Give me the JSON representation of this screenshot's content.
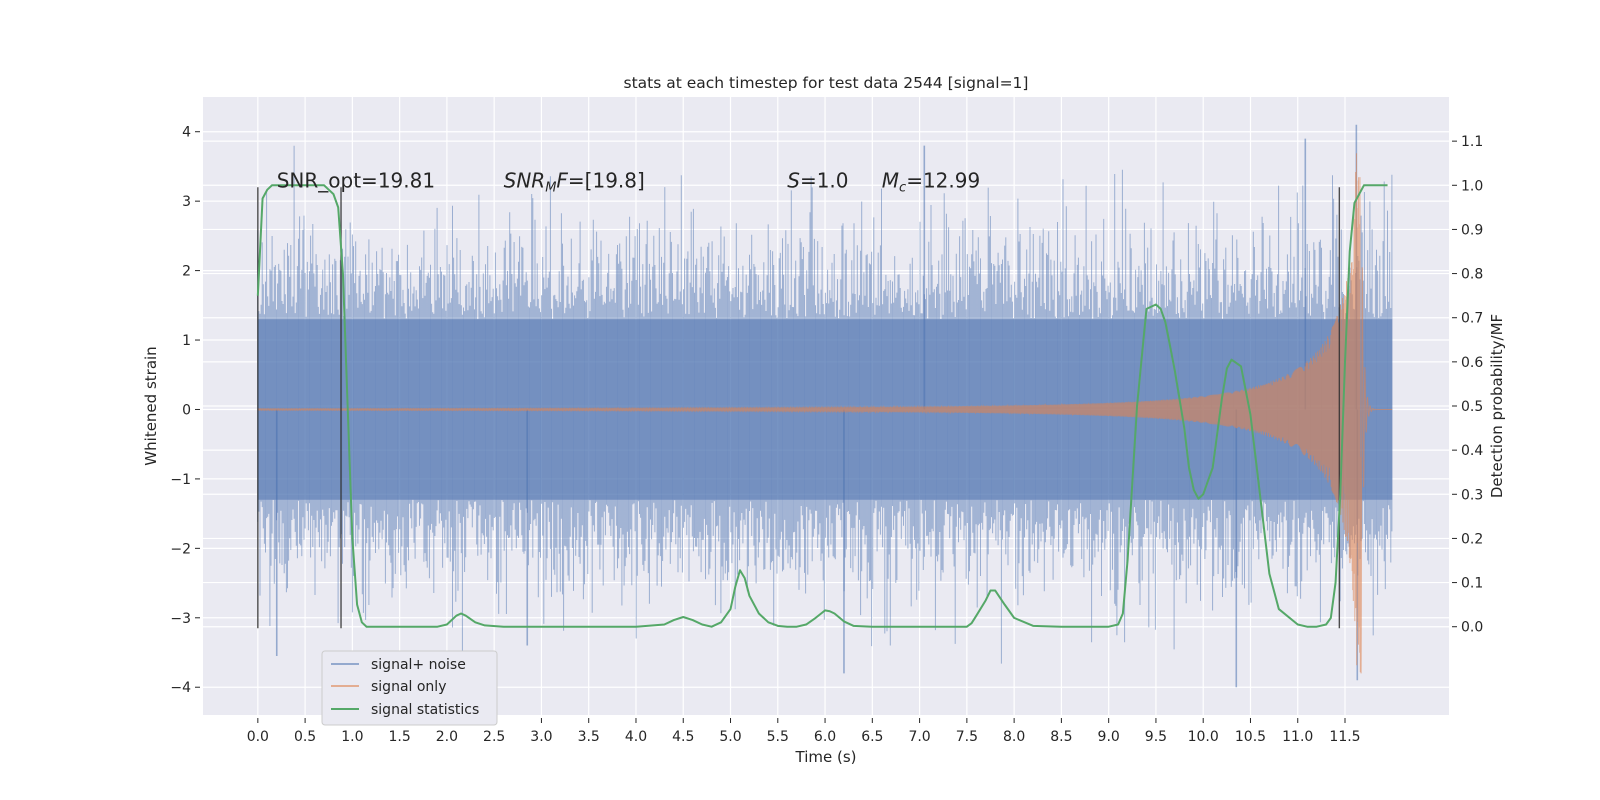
{
  "chart_data": {
    "type": "line",
    "title": "stats at each timestep for test data 2544 [signal=1]",
    "xlabel": "Time (s)",
    "ylabel": "Whitened strain",
    "y2label": "Detection probability/MF",
    "xlim": [
      -0.58,
      12.6
    ],
    "ylim": [
      -4.4,
      4.5
    ],
    "y2lim": [
      -0.2,
      1.2
    ],
    "xticks": [
      "0.0",
      "0.5",
      "1.0",
      "1.5",
      "2.0",
      "2.5",
      "3.0",
      "3.5",
      "4.0",
      "4.5",
      "5.0",
      "5.5",
      "6.0",
      "6.5",
      "7.0",
      "7.5",
      "8.0",
      "8.5",
      "9.0",
      "9.5",
      "10.0",
      "10.5",
      "11.0",
      "11.5"
    ],
    "yticks": [
      "4",
      "3",
      "2",
      "1",
      "0",
      "−1",
      "−2",
      "−3",
      "−4"
    ],
    "y2ticks": [
      "1.1",
      "1.0",
      "0.9",
      "0.8",
      "0.7",
      "0.6",
      "0.5",
      "0.4",
      "0.3",
      "0.2",
      "0.1",
      "0.0"
    ],
    "grid": true,
    "legend_position": "lower-left",
    "annotations": [
      {
        "text": "SNR_opt=19.81",
        "x": 0.2,
        "y": 3.2
      },
      {
        "text": "SNR_MF=[19.8]",
        "x": 2.6,
        "y": 3.2
      },
      {
        "text": "S=1.0",
        "x": 5.6,
        "y": 3.2
      },
      {
        "text": "M_c=12.99",
        "x": 6.6,
        "y": 3.2
      }
    ],
    "vlines": [
      0.0,
      0.88,
      11.44
    ],
    "series": [
      {
        "name": "signal+ noise",
        "color": "#4c72b0",
        "kind": "noise-band",
        "x_range": [
          0.0,
          12.0
        ],
        "envelope_mid": 1.3,
        "peak_max": 4.1,
        "peak_min": -4.0
      },
      {
        "name": "signal only",
        "color": "#dd8452",
        "kind": "chirp",
        "x_range": [
          0.0,
          12.0
        ],
        "peak_amplitude": 3.8,
        "merger_time": 11.67
      },
      {
        "name": "signal statistics",
        "color": "#55a868",
        "axis": "right",
        "x": [
          0.0,
          0.05,
          0.1,
          0.15,
          0.2,
          0.3,
          0.4,
          0.5,
          0.6,
          0.7,
          0.75,
          0.8,
          0.85,
          0.9,
          0.95,
          1.0,
          1.05,
          1.1,
          1.15,
          1.2,
          1.3,
          1.5,
          1.7,
          1.9,
          2.0,
          2.1,
          2.15,
          2.2,
          2.3,
          2.4,
          2.6,
          3.0,
          3.5,
          4.0,
          4.3,
          4.4,
          4.5,
          4.6,
          4.7,
          4.8,
          4.9,
          5.0,
          5.05,
          5.1,
          5.15,
          5.2,
          5.3,
          5.4,
          5.5,
          5.6,
          5.7,
          5.8,
          5.9,
          6.0,
          6.05,
          6.1,
          6.2,
          6.3,
          6.5,
          7.0,
          7.5,
          7.55,
          7.6,
          7.7,
          7.75,
          7.8,
          7.9,
          8.0,
          8.2,
          8.5,
          8.8,
          9.0,
          9.1,
          9.15,
          9.2,
          9.3,
          9.4,
          9.5,
          9.55,
          9.6,
          9.7,
          9.8,
          9.85,
          9.9,
          9.95,
          10.0,
          10.1,
          10.2,
          10.25,
          10.3,
          10.4,
          10.5,
          10.6,
          10.7,
          10.8,
          11.0,
          11.1,
          11.2,
          11.3,
          11.35,
          11.4,
          11.45,
          11.5,
          11.55,
          11.6,
          11.7,
          11.8,
          11.95
        ],
        "y": [
          0.75,
          0.97,
          0.99,
          1.0,
          1.0,
          1.0,
          1.0,
          1.0,
          1.0,
          1.0,
          0.99,
          0.98,
          0.95,
          0.8,
          0.5,
          0.2,
          0.05,
          0.01,
          0.0,
          0.0,
          0.0,
          0.0,
          0.0,
          0.0,
          0.005,
          0.025,
          0.03,
          0.025,
          0.01,
          0.003,
          0.0,
          0.0,
          0.0,
          0.0,
          0.005,
          0.015,
          0.022,
          0.015,
          0.005,
          0.0,
          0.01,
          0.04,
          0.09,
          0.128,
          0.11,
          0.07,
          0.03,
          0.01,
          0.002,
          0.0,
          0.0,
          0.005,
          0.02,
          0.037,
          0.035,
          0.03,
          0.012,
          0.002,
          0.0,
          0.0,
          0.0,
          0.008,
          0.025,
          0.06,
          0.082,
          0.082,
          0.05,
          0.02,
          0.002,
          0.0,
          0.0,
          0.0,
          0.005,
          0.03,
          0.15,
          0.5,
          0.72,
          0.73,
          0.72,
          0.69,
          0.58,
          0.45,
          0.36,
          0.31,
          0.29,
          0.3,
          0.36,
          0.52,
          0.585,
          0.605,
          0.59,
          0.48,
          0.3,
          0.12,
          0.04,
          0.005,
          0.0,
          0.0,
          0.005,
          0.02,
          0.1,
          0.3,
          0.6,
          0.85,
          0.96,
          1.0,
          1.0,
          1.0
        ]
      }
    ]
  }
}
